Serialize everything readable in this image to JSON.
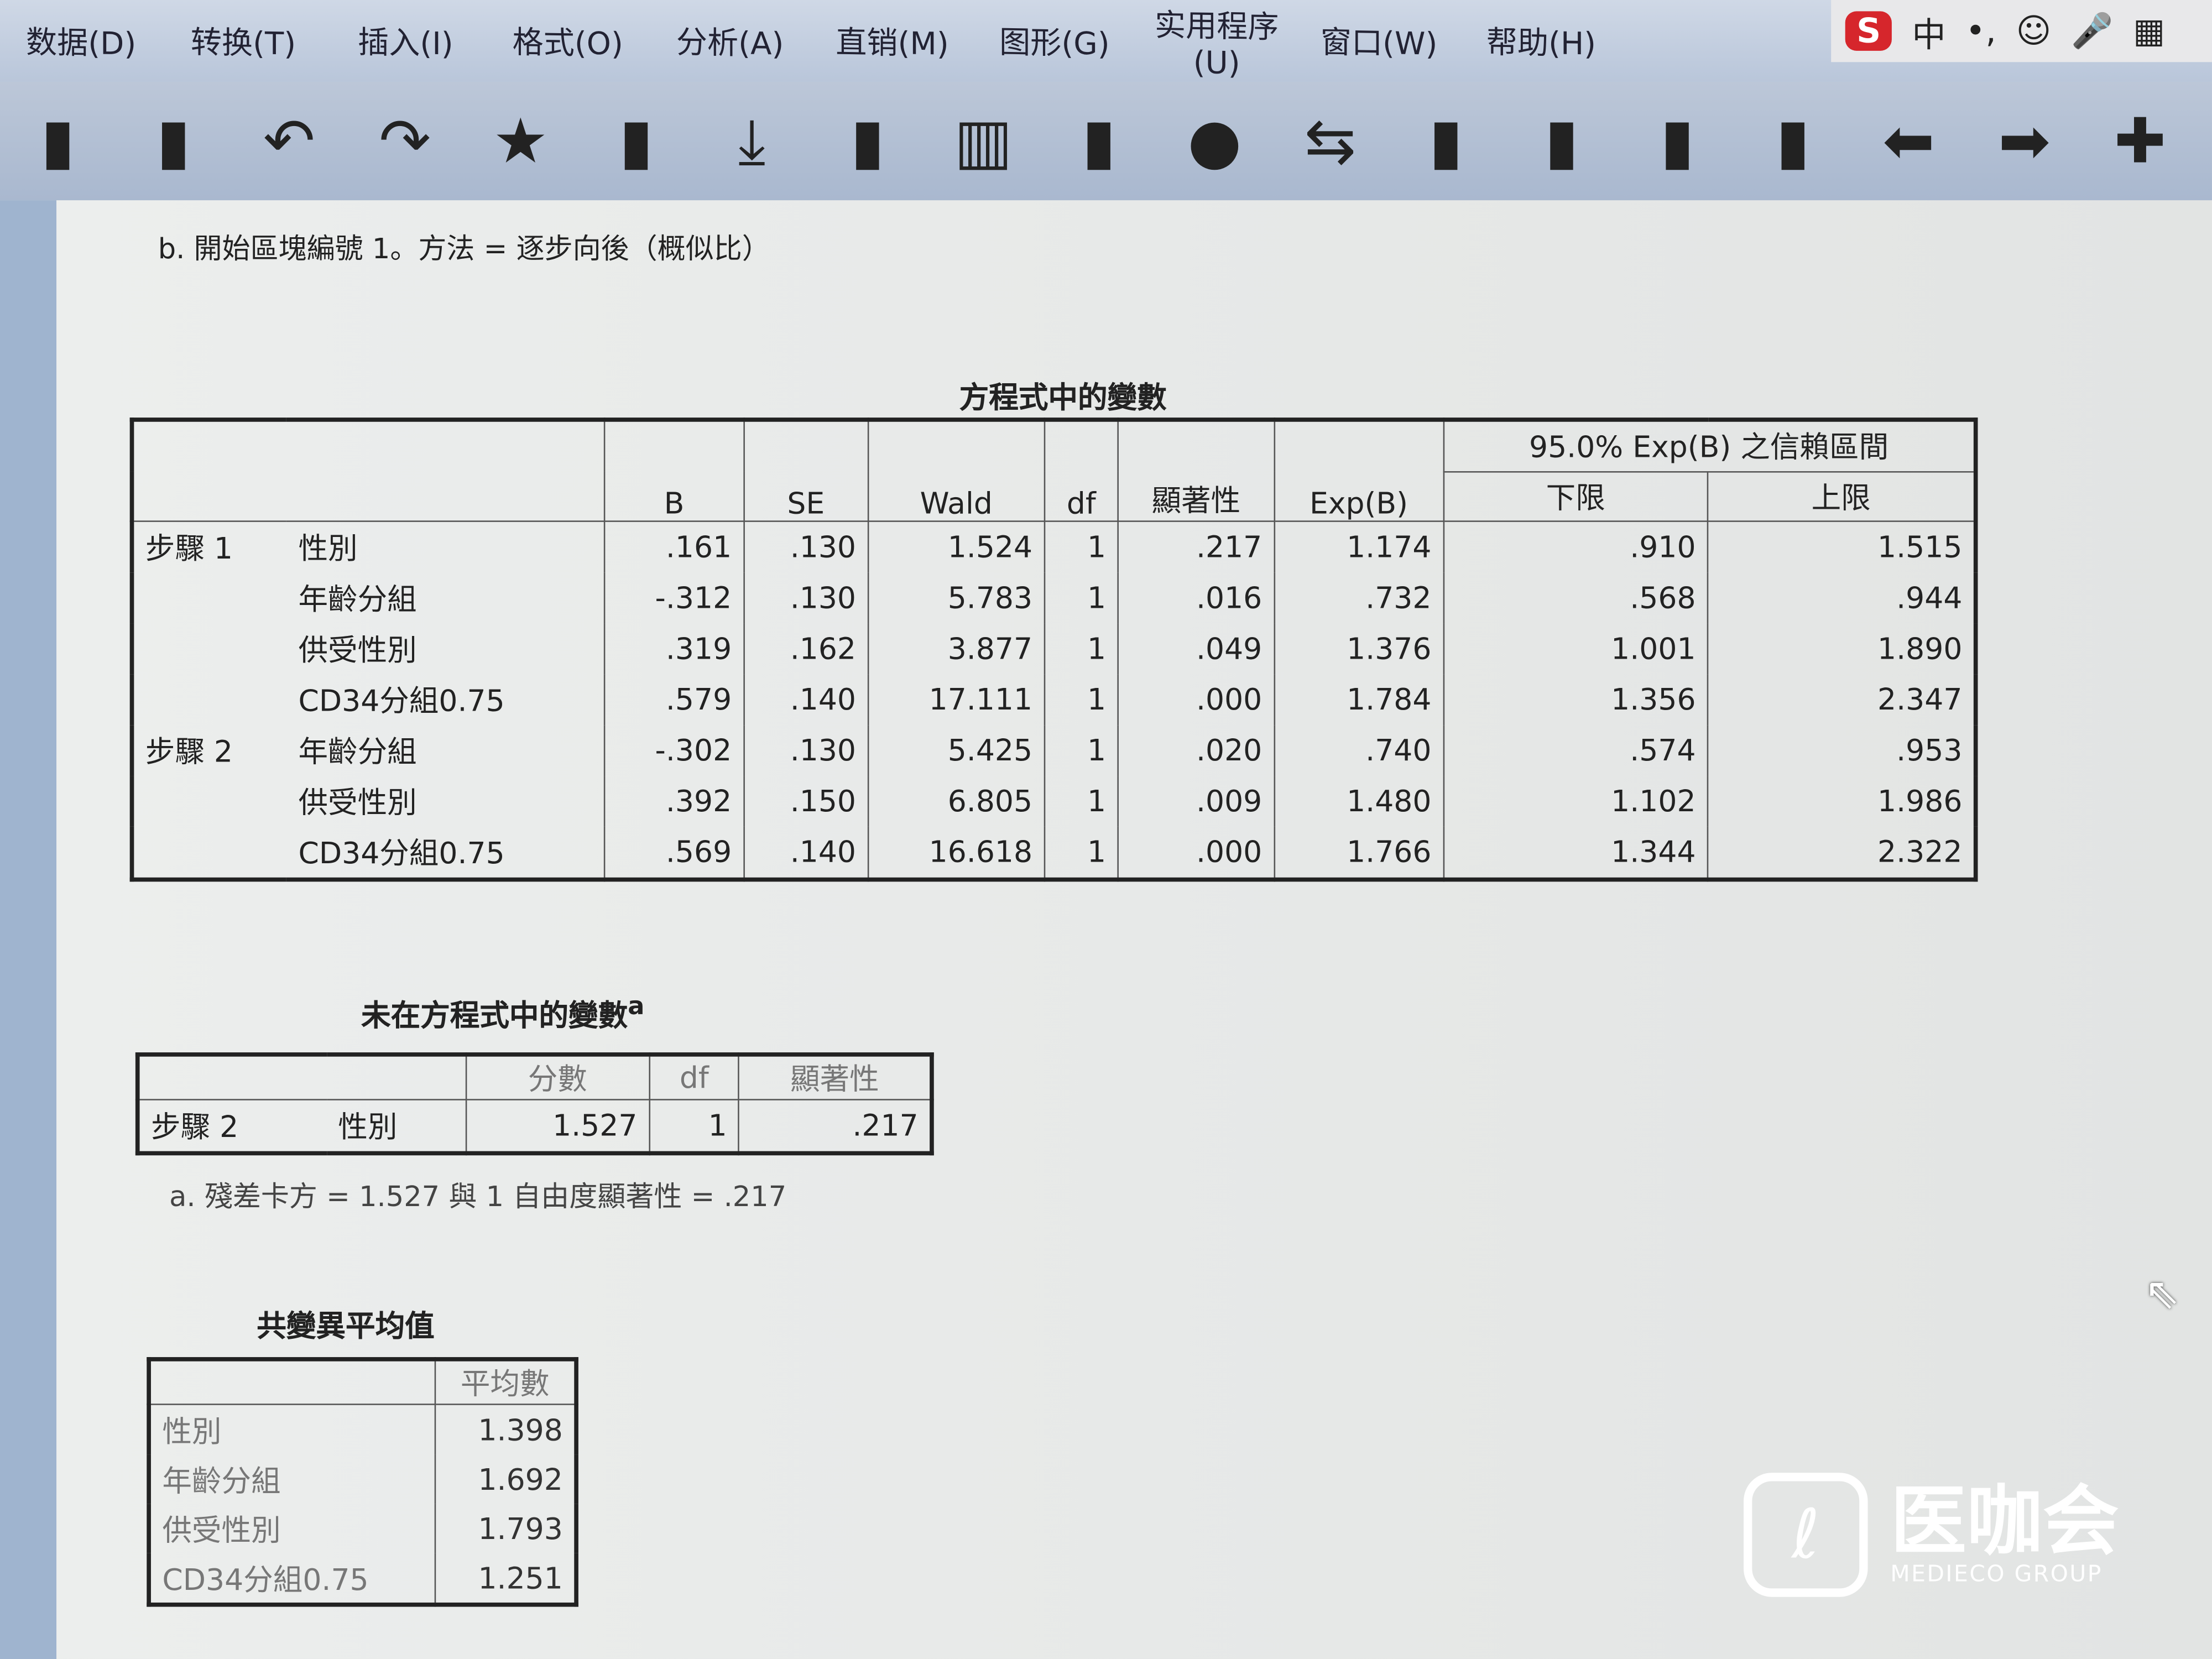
{
  "menu": [
    "数据(D)",
    "转换(T)",
    "插入(I)",
    "格式(O)",
    "分析(A)",
    "直销(M)",
    "图形(G)",
    "实用程序(U)",
    "窗口(W)",
    "帮助(H)"
  ],
  "ime": {
    "brand": "S",
    "mode": "中",
    "punct": "•,"
  },
  "toolbar_icons": [
    "open-icon",
    "export-icon",
    "undo-icon",
    "redo-icon",
    "goto-case-icon",
    "goto-variable-icon",
    "insert-cases-icon",
    "insert-variable-icon",
    "split-file-icon",
    "weight-cases-icon",
    "select-cases-icon",
    "value-labels-icon",
    "use-sets-icon",
    "show-all-icon",
    "spell-icon",
    "designate-window-icon",
    "back-icon",
    "forward-icon",
    "add-icon"
  ],
  "note_b": "b. 開始區塊編號 1。方法 = 逐步向後（概似比）",
  "vars_in": {
    "title": "方程式中的變數",
    "headers": [
      "B",
      "SE",
      "Wald",
      "df",
      "顯著性",
      "Exp(B)"
    ],
    "ci_header": "95.0% Exp(B) 之信賴區間",
    "ci_sub": [
      "下限",
      "上限"
    ],
    "rows": [
      [
        "步驟 1",
        "性別",
        ".161",
        ".130",
        "1.524",
        "1",
        ".217",
        "1.174",
        ".910",
        "1.515"
      ],
      [
        "",
        "年齡分組",
        "-.312",
        ".130",
        "5.783",
        "1",
        ".016",
        ".732",
        ".568",
        ".944"
      ],
      [
        "",
        "供受性別",
        ".319",
        ".162",
        "3.877",
        "1",
        ".049",
        "1.376",
        "1.001",
        "1.890"
      ],
      [
        "",
        "CD34分組0.75",
        ".579",
        ".140",
        "17.111",
        "1",
        ".000",
        "1.784",
        "1.356",
        "2.347"
      ],
      [
        "步驟 2",
        "年齡分組",
        "-.302",
        ".130",
        "5.425",
        "1",
        ".020",
        ".740",
        ".574",
        ".953"
      ],
      [
        "",
        "供受性別",
        ".392",
        ".150",
        "6.805",
        "1",
        ".009",
        "1.480",
        "1.102",
        "1.986"
      ],
      [
        "",
        "CD34分組0.75",
        ".569",
        ".140",
        "16.618",
        "1",
        ".000",
        "1.766",
        "1.344",
        "2.322"
      ]
    ]
  },
  "vars_out": {
    "title": "未在方程式中的變數",
    "title_sup": "a",
    "headers": [
      "分數",
      "df",
      "顯著性"
    ],
    "row": [
      "步驟 2",
      "性別",
      "1.527",
      "1",
      ".217"
    ],
    "footnote": "a. 殘差卡方 = 1.527 與 1 自由度顯著性 = .217"
  },
  "covmeans": {
    "title": "共變異平均值",
    "header": "平均數",
    "rows": [
      [
        "性別",
        "1.398"
      ],
      [
        "年齡分組",
        "1.692"
      ],
      [
        "供受性別",
        "1.793"
      ],
      [
        "CD34分組0.75",
        "1.251"
      ]
    ]
  },
  "watermark": {
    "cn": "医咖会",
    "en": "MEDIECO GROUP"
  }
}
